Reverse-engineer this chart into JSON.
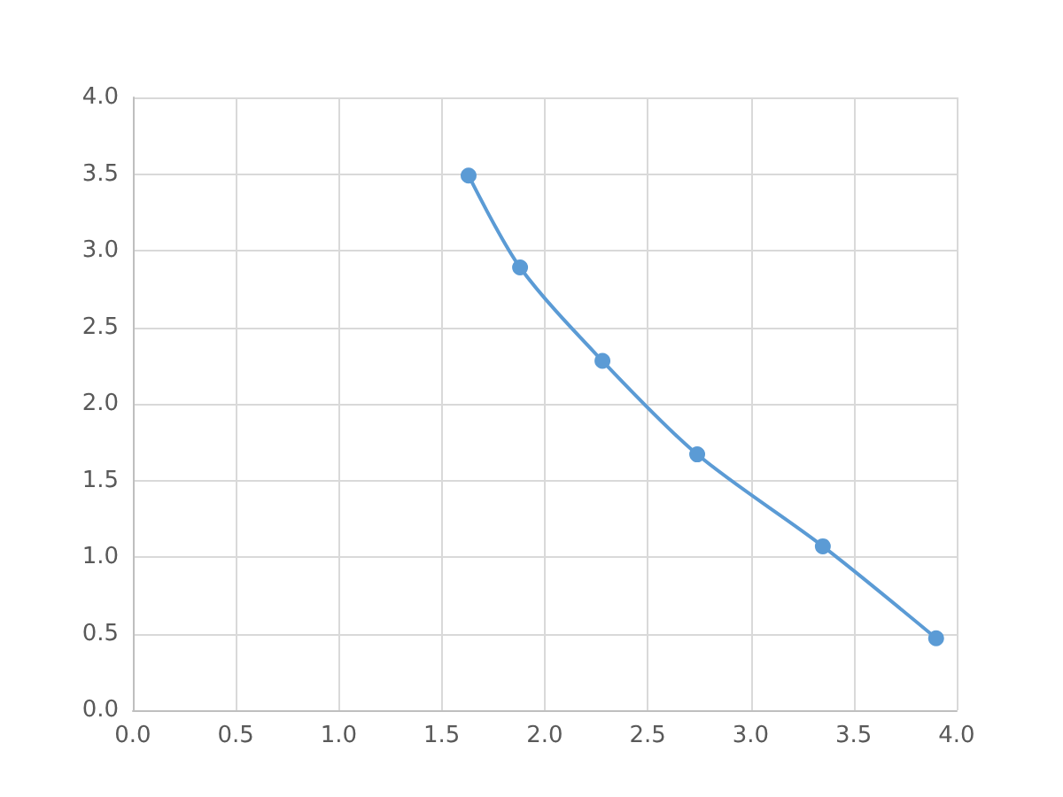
{
  "chart_data": {
    "type": "line",
    "x": [
      1.63,
      1.88,
      2.28,
      2.74,
      3.35,
      3.9
    ],
    "series": [
      {
        "color": "#5b9bd5",
        "values": [
          3.49,
          2.89,
          2.28,
          1.67,
          1.07,
          0.47
        ]
      }
    ],
    "xlim": [
      0,
      4
    ],
    "xticks": [
      {
        "value": 0,
        "label": "0.0"
      },
      0.5,
      {
        "value": 1,
        "label": "1.0"
      },
      1.5,
      {
        "value": 2,
        "label": "2.0"
      },
      2.5,
      {
        "value": 3,
        "label": "3.0"
      },
      3.5,
      {
        "value": 4,
        "label": "4.0"
      }
    ],
    "ylim": [
      0,
      4
    ],
    "yticks": [
      {
        "value": 0,
        "label": "0.0"
      },
      0.5,
      {
        "value": 1,
        "label": "1.0"
      },
      1.5,
      {
        "value": 2,
        "label": "2.0"
      },
      2.5,
      {
        "value": 3,
        "label": "3.0"
      },
      3.5,
      {
        "value": 4,
        "label": "4.0"
      }
    ],
    "grid": true,
    "marker": "circle",
    "line_style": "solid"
  }
}
